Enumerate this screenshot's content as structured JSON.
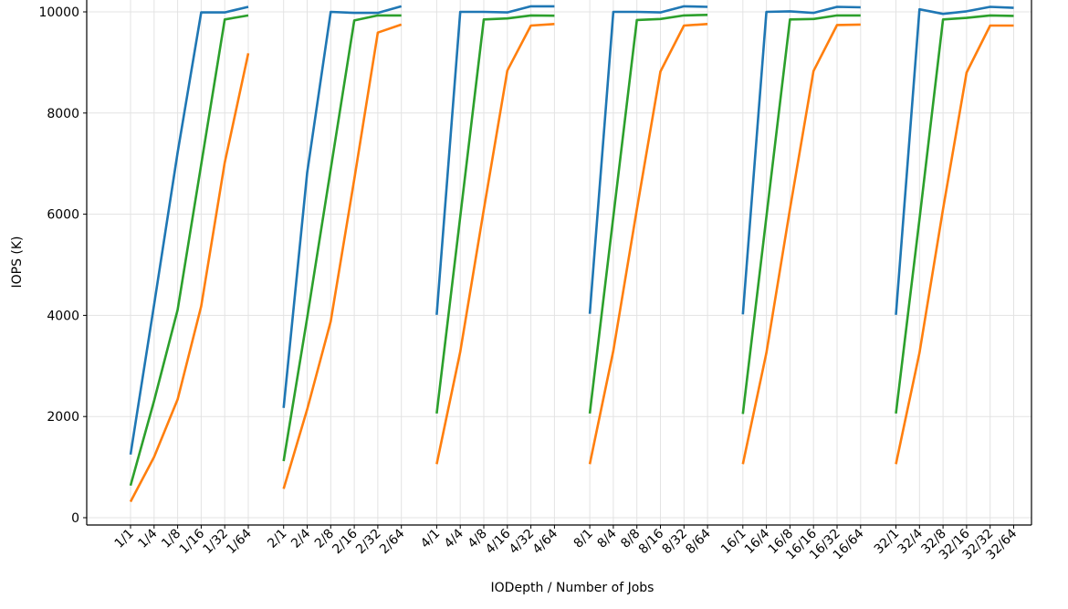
{
  "chart_data": {
    "type": "line",
    "title": "",
    "xlabel": "IODepth / Number of Jobs",
    "ylabel": "IOPS (K)",
    "ylim": [
      -150,
      10500
    ],
    "yticks": [
      0,
      2000,
      4000,
      6000,
      8000,
      10000
    ],
    "grid": true,
    "groups": [
      {
        "labels": [
          "1/1",
          "1/4",
          "1/8",
          "1/16",
          "1/32",
          "1/64"
        ]
      },
      {
        "labels": [
          "2/1",
          "2/4",
          "2/8",
          "2/16",
          "2/32",
          "2/64"
        ]
      },
      {
        "labels": [
          "4/1",
          "4/4",
          "4/8",
          "4/16",
          "4/32",
          "4/64"
        ]
      },
      {
        "labels": [
          "8/1",
          "8/4",
          "8/8",
          "8/16",
          "8/32",
          "8/64"
        ]
      },
      {
        "labels": [
          "16/1",
          "16/4",
          "16/8",
          "16/16",
          "16/32",
          "16/64"
        ]
      },
      {
        "labels": [
          "32/1",
          "32/4",
          "32/8",
          "32/16",
          "32/32",
          "32/64"
        ]
      }
    ],
    "series": [
      {
        "color": "#1f77b4",
        "values": [
          [
            1250,
            4210,
            7220,
            9990,
            9990,
            10100
          ],
          [
            2170,
            6820,
            10000,
            9980,
            9980,
            10110
          ],
          [
            4010,
            10000,
            10000,
            9990,
            10110,
            10110
          ],
          [
            4030,
            10000,
            10000,
            9990,
            10110,
            10100
          ],
          [
            4020,
            10000,
            10010,
            9980,
            10100,
            10090
          ],
          [
            4010,
            10050,
            9960,
            10010,
            10100,
            10080
          ]
        ]
      },
      {
        "color": "#ff7f0e",
        "values": [
          [
            315,
            1200,
            2340,
            4180,
            7020,
            9180
          ],
          [
            570,
            2140,
            3880,
            6690,
            9590,
            9750
          ],
          [
            1060,
            3280,
            6090,
            8840,
            9730,
            9760
          ],
          [
            1060,
            3300,
            6100,
            8820,
            9730,
            9760
          ],
          [
            1060,
            3260,
            6100,
            8830,
            9740,
            9750
          ],
          [
            1060,
            3260,
            6100,
            8800,
            9730,
            9730
          ]
        ]
      },
      {
        "color": "#2ca02c",
        "values": [
          [
            635,
            2310,
            4110,
            6980,
            9850,
            9930
          ],
          [
            1120,
            3950,
            6890,
            9830,
            9930,
            9930
          ],
          [
            2060,
            5950,
            9850,
            9870,
            9930,
            9925
          ],
          [
            2060,
            5950,
            9840,
            9860,
            9930,
            9940
          ],
          [
            2050,
            5950,
            9850,
            9860,
            9930,
            9930
          ],
          [
            2060,
            5900,
            9850,
            9880,
            9930,
            9920
          ]
        ]
      }
    ]
  }
}
